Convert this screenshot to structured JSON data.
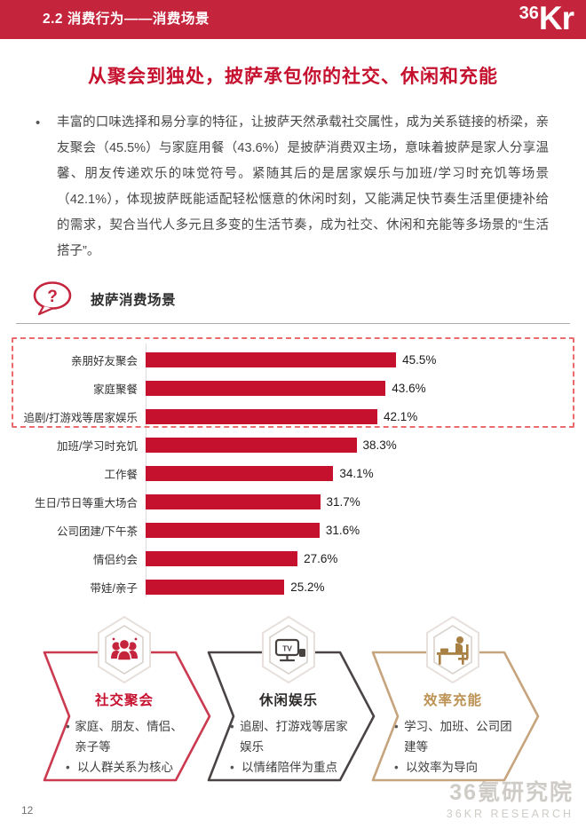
{
  "header": {
    "title": "2.2 消费行为——消费场景",
    "logo": {
      "icon": "36kr-logo",
      "part1": "36",
      "part2": "Kr"
    }
  },
  "main_title": "从聚会到独处，披萨承包你的社交、休闲和充能",
  "paragraph": {
    "bullet": "•",
    "text": "丰富的口味选择和易分享的特征，让披萨天然承载社交属性，成为关系链接的桥梁，亲友聚会（45.5%）与家庭用餐（43.6%）是披萨消费双主场，意味着披萨是家人分享温馨、朋友传递欢乐的味觉符号。紧随其后的是居家娱乐与加班/学习时充饥等场景（42.1%），体现披萨既能适配轻松惬意的休闲时刻，又能满足快节奏生活里便捷补给的需求，契合当代人多元且多变的生活节奏，成为社交、休闲和充能等多场景的“生活搭子”。"
  },
  "section": {
    "icon": "question-bubble-icon",
    "label": "披萨消费场景"
  },
  "chart_data": {
    "type": "bar",
    "orientation": "horizontal",
    "title": "披萨消费场景",
    "categories": [
      "亲朋好友聚会",
      "家庭聚餐",
      "追剧/打游戏等居家娱乐",
      "加班/学习时充饥",
      "工作餐",
      "生日/节日等重大场合",
      "公司团建/下午茶",
      "情侣约会",
      "带娃/亲子"
    ],
    "values": [
      45.5,
      43.6,
      42.1,
      38.3,
      34.1,
      31.7,
      31.6,
      27.6,
      25.2
    ],
    "value_labels": [
      "45.5%",
      "43.6%",
      "42.1%",
      "38.3%",
      "34.1%",
      "31.7%",
      "31.6%",
      "27.6%",
      "25.2%"
    ],
    "bar_color": "#C5102E",
    "highlight_top_n": 3,
    "highlight_style": "dashed-red-box",
    "xlim": [
      0,
      50
    ],
    "grid": false,
    "legend": false
  },
  "cards": [
    {
      "icon": "people-group-icon",
      "border_color": "#CB3A50",
      "accent_color": "#C5102E",
      "title": "社交聚会",
      "bullets": [
        "家庭、朋友、情侣、亲子等",
        "以人群关系为核心"
      ]
    },
    {
      "icon": "tv-icon",
      "border_color": "#4A4444",
      "accent_color": "#2F2B2B",
      "title": "休闲娱乐",
      "bullets": [
        "追剧、打游戏等居家娱乐",
        "以情绪陪伴为重点"
      ]
    },
    {
      "icon": "desk-study-icon",
      "border_color": "#C6A47D",
      "accent_color": "#BC9254",
      "title": "效率充能",
      "bullets": [
        "学习、加班、公司团建等",
        "以效率为导向"
      ]
    }
  ],
  "watermark": {
    "line1": "36氪研究院",
    "line2": "36KR RESEARCH"
  },
  "page_number": "12"
}
